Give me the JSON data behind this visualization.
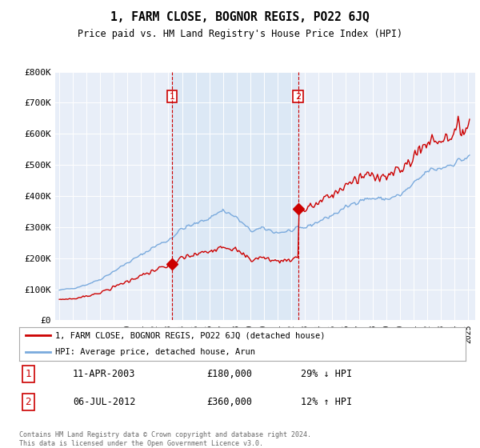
{
  "title": "1, FARM CLOSE, BOGNOR REGIS, PO22 6JQ",
  "subtitle": "Price paid vs. HM Land Registry's House Price Index (HPI)",
  "hpi_color": "#7aaadd",
  "price_color": "#cc0000",
  "shade_color": "#dce8f5",
  "marker1_year": 2003.27,
  "marker2_year": 2012.52,
  "marker1_price": 180000,
  "marker2_price": 360000,
  "legend_line1": "1, FARM CLOSE, BOGNOR REGIS, PO22 6JQ (detached house)",
  "legend_line2": "HPI: Average price, detached house, Arun",
  "table_row1": [
    "1",
    "11-APR-2003",
    "£180,000",
    "29% ↓ HPI"
  ],
  "table_row2": [
    "2",
    "06-JUL-2012",
    "£360,000",
    "12% ↑ HPI"
  ],
  "footer": "Contains HM Land Registry data © Crown copyright and database right 2024.\nThis data is licensed under the Open Government Licence v3.0.",
  "ylim": [
    0,
    800000
  ],
  "yticks": [
    0,
    100000,
    200000,
    300000,
    400000,
    500000,
    600000,
    700000,
    800000
  ],
  "ytick_labels": [
    "£0",
    "£100K",
    "£200K",
    "£300K",
    "£400K",
    "£500K",
    "£600K",
    "£700K",
    "£800K"
  ],
  "xlim_start": 1994.7,
  "xlim_end": 2025.5,
  "background_color": "#e8eef8"
}
